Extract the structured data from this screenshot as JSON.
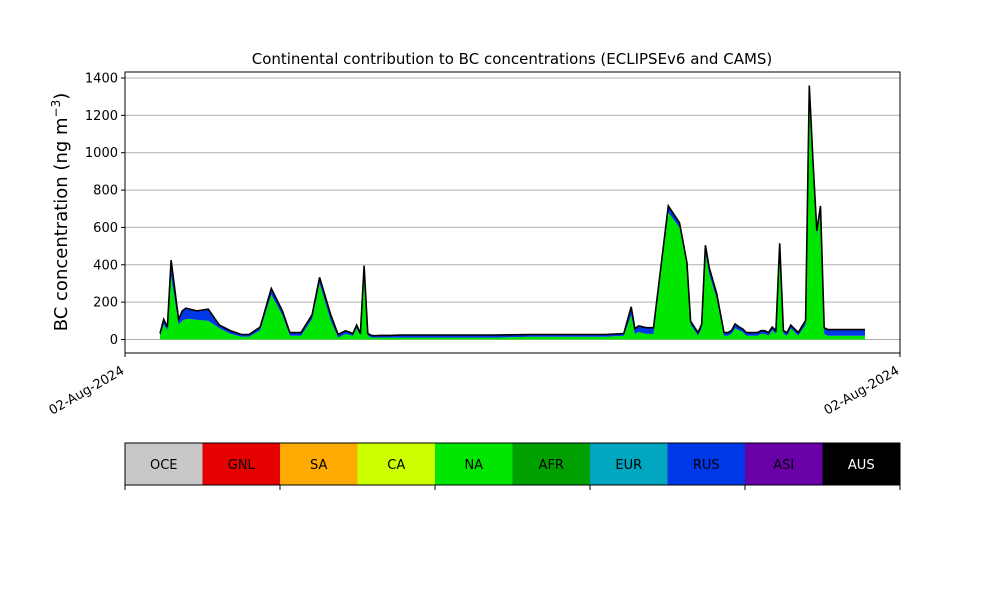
{
  "chart_data": {
    "type": "area",
    "title": "Continental contribution to BC concentrations (ECLIPSEv6 and CAMS)",
    "ylabel_base": "BC concentration (ng m",
    "ylabel_exp": "−3",
    "ylabel_close": ")",
    "xlabel": "",
    "ylim": [
      -70,
      1420
    ],
    "yticks": [
      0,
      200,
      400,
      600,
      800,
      1000,
      1200,
      1400
    ],
    "xtick_labels": [
      "02-Aug-2024",
      "02-Aug-2024"
    ],
    "grid": "horizontal",
    "x_index": [
      0,
      1,
      2,
      3,
      5,
      6,
      7,
      8,
      10,
      13,
      16,
      19,
      22,
      24,
      27,
      30,
      33,
      35,
      38,
      41,
      43,
      46,
      48,
      50,
      52,
      53,
      54,
      55,
      56,
      57,
      58,
      59,
      62,
      65,
      70,
      80,
      90,
      100,
      110,
      120,
      125,
      127,
      128,
      129,
      131,
      133,
      137,
      140,
      142,
      143,
      145,
      146,
      147,
      148,
      150,
      152,
      153,
      154,
      155,
      156,
      157,
      158,
      160,
      161,
      162,
      163,
      164,
      165,
      166,
      167,
      168,
      169,
      170,
      172,
      174,
      175,
      176,
      177,
      178,
      179,
      180,
      182,
      185,
      186,
      190
    ],
    "series": [
      {
        "name": "NA",
        "values": [
          20,
          80,
          50,
          340,
          80,
          100,
          110,
          110,
          105,
          100,
          60,
          30,
          15,
          15,
          50,
          240,
          130,
          20,
          20,
          110,
          300,
          100,
          10,
          30,
          20,
          60,
          20,
          330,
          20,
          10,
          10,
          10,
          10,
          10,
          10,
          10,
          10,
          15,
          15,
          15,
          20,
          130,
          30,
          40,
          30,
          30,
          680,
          600,
          400,
          80,
          20,
          60,
          460,
          350,
          220,
          20,
          20,
          30,
          60,
          50,
          40,
          20,
          20,
          20,
          30,
          30,
          20,
          50,
          30,
          480,
          30,
          20,
          60,
          20,
          80,
          1280,
          900,
          560,
          680,
          30,
          20,
          20,
          20,
          20,
          20
        ]
      },
      {
        "name": "RUS",
        "values": [
          10,
          25,
          15,
          80,
          25,
          50,
          55,
          50,
          45,
          60,
          15,
          15,
          10,
          10,
          15,
          30,
          20,
          15,
          15,
          20,
          30,
          30,
          15,
          15,
          10,
          15,
          10,
          60,
          10,
          10,
          8,
          10,
          10,
          12,
          12,
          12,
          12,
          10,
          10,
          10,
          10,
          40,
          25,
          30,
          30,
          30,
          30,
          20,
          10,
          15,
          15,
          20,
          40,
          30,
          25,
          15,
          15,
          15,
          20,
          15,
          15,
          15,
          15,
          15,
          15,
          15,
          15,
          15,
          15,
          30,
          15,
          15,
          15,
          15,
          20,
          70,
          40,
          20,
          30,
          30,
          30,
          30,
          30,
          30,
          30
        ]
      },
      {
        "name": "AUS",
        "values": [
          2,
          3,
          2,
          5,
          2,
          3,
          3,
          3,
          3,
          3,
          2,
          2,
          2,
          2,
          2,
          3,
          3,
          2,
          2,
          2,
          3,
          3,
          2,
          2,
          2,
          2,
          2,
          5,
          2,
          2,
          2,
          2,
          2,
          2,
          2,
          2,
          2,
          2,
          2,
          2,
          2,
          5,
          3,
          3,
          3,
          3,
          5,
          5,
          3,
          3,
          2,
          2,
          5,
          5,
          3,
          2,
          2,
          2,
          3,
          3,
          2,
          2,
          2,
          2,
          2,
          2,
          2,
          2,
          2,
          5,
          2,
          2,
          2,
          2,
          2,
          10,
          5,
          3,
          5,
          3,
          3,
          3,
          3,
          3,
          3
        ]
      }
    ],
    "colorbar": [
      {
        "label": "OCE",
        "color": "#c8c8c8",
        "text_color": "#000000"
      },
      {
        "label": "GNL",
        "color": "#e60000",
        "text_color": "#000000"
      },
      {
        "label": "SA",
        "color": "#ffaa00",
        "text_color": "#000000"
      },
      {
        "label": "CA",
        "color": "#ccff00",
        "text_color": "#000000"
      },
      {
        "label": "NA",
        "color": "#00e600",
        "text_color": "#000000"
      },
      {
        "label": "AFR",
        "color": "#00a000",
        "text_color": "#000000"
      },
      {
        "label": "EUR",
        "color": "#00a6bf",
        "text_color": "#000000"
      },
      {
        "label": "RUS",
        "color": "#0037e6",
        "text_color": "#000000"
      },
      {
        "label": "ASI",
        "color": "#6a00a8",
        "text_color": "#000000"
      },
      {
        "label": "AUS",
        "color": "#000000",
        "text_color": "#ffffff"
      }
    ]
  }
}
